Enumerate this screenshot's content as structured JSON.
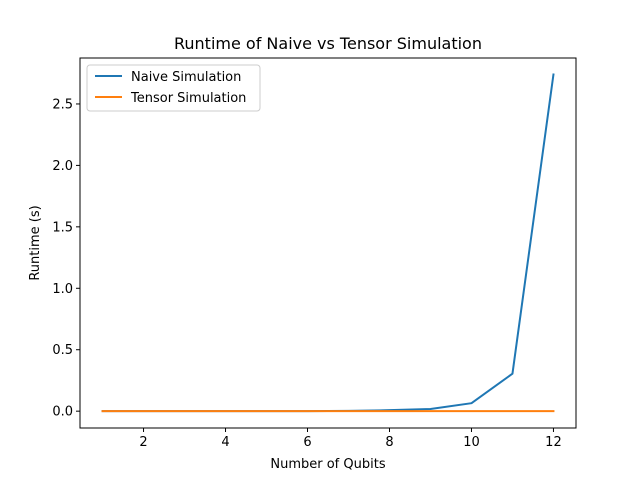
{
  "chart_data": {
    "type": "line",
    "title": "Runtime of Naive vs Tensor Simulation",
    "xlabel": "Number of Qubits",
    "ylabel": "Runtime (s)",
    "xlim": [
      0.45,
      12.55
    ],
    "ylim": [
      -0.137,
      2.874
    ],
    "x_ticks": [
      2,
      4,
      6,
      8,
      10,
      12
    ],
    "y_ticks": [
      0.0,
      0.5,
      1.0,
      1.5,
      2.0,
      2.5
    ],
    "x_tick_labels": [
      "2",
      "4",
      "6",
      "8",
      "10",
      "12"
    ],
    "y_tick_labels": [
      "0.0",
      "0.5",
      "1.0",
      "1.5",
      "2.0",
      "2.5"
    ],
    "x": [
      1,
      2,
      3,
      4,
      5,
      6,
      7,
      8,
      9,
      10,
      11,
      12
    ],
    "series": [
      {
        "name": "Naive Simulation",
        "color": "#1f77b4",
        "values": [
          0.0,
          0.0,
          0.0,
          0.0,
          0.0,
          0.0,
          0.002,
          0.008,
          0.018,
          0.065,
          0.305,
          2.74
        ]
      },
      {
        "name": "Tensor Simulation",
        "color": "#ff7f0e",
        "values": [
          0.0,
          0.0,
          0.0,
          0.0,
          0.0,
          0.0,
          0.0,
          0.0,
          0.0,
          0.0,
          0.0,
          0.0
        ]
      }
    ],
    "legend_position": "upper-left",
    "grid": false
  }
}
